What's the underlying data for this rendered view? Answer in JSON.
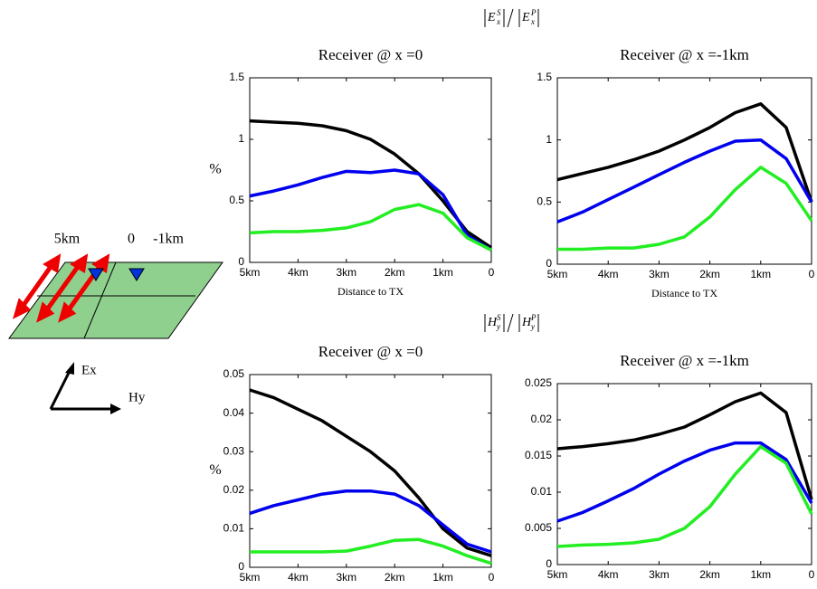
{
  "chart_data": [
    {
      "type": "line",
      "title": "Receiver @ x =0",
      "ylabel": "%",
      "xlabel": "Distance to TX",
      "x": [
        5,
        4.5,
        4,
        3.5,
        3,
        2.5,
        2,
        1.5,
        1,
        0.5,
        0
      ],
      "xlim": [
        5,
        0
      ],
      "xticks": [
        {
          "value": 5,
          "label": "5km"
        },
        {
          "value": 4,
          "label": "4km"
        },
        {
          "value": 3,
          "label": "3km"
        },
        {
          "value": 2,
          "label": "2km"
        },
        {
          "value": 1,
          "label": "1km"
        },
        0
      ],
      "ylim": [
        0,
        1.5
      ],
      "yticks": [
        0,
        0.5,
        1,
        1.5
      ],
      "series": [
        {
          "color": "#000000",
          "values": [
            1.15,
            1.14,
            1.13,
            1.11,
            1.07,
            1.0,
            0.88,
            0.72,
            0.5,
            0.25,
            0.12
          ]
        },
        {
          "color": "#0000ee",
          "values": [
            0.54,
            0.58,
            0.63,
            0.69,
            0.74,
            0.73,
            0.75,
            0.72,
            0.55,
            0.22,
            0.1
          ]
        },
        {
          "color": "#22ee22",
          "values": [
            0.24,
            0.25,
            0.25,
            0.26,
            0.28,
            0.33,
            0.43,
            0.47,
            0.4,
            0.2,
            0.1
          ]
        }
      ]
    },
    {
      "type": "line",
      "title": "Receiver @ x =-1km",
      "xlabel": "Distance to TX",
      "x": [
        5,
        4.5,
        4,
        3.5,
        3,
        2.5,
        2,
        1.5,
        1,
        0.5,
        0
      ],
      "xlim": [
        5,
        0
      ],
      "xticks": [
        {
          "value": 5,
          "label": "5km"
        },
        {
          "value": 4,
          "label": "4km"
        },
        {
          "value": 3,
          "label": "3km"
        },
        {
          "value": 2,
          "label": "2km"
        },
        {
          "value": 1,
          "label": "1km"
        },
        0
      ],
      "ylim": [
        0,
        1.5
      ],
      "yticks": [
        0,
        0.5,
        1,
        1.5
      ],
      "series": [
        {
          "color": "#000000",
          "values": [
            0.68,
            0.73,
            0.78,
            0.84,
            0.91,
            1.0,
            1.1,
            1.22,
            1.29,
            1.1,
            0.5
          ]
        },
        {
          "color": "#0000ee",
          "values": [
            0.34,
            0.42,
            0.52,
            0.62,
            0.72,
            0.82,
            0.91,
            0.99,
            1.0,
            0.85,
            0.5
          ]
        },
        {
          "color": "#22ee22",
          "values": [
            0.12,
            0.12,
            0.13,
            0.13,
            0.16,
            0.22,
            0.38,
            0.6,
            0.78,
            0.65,
            0.35
          ]
        }
      ]
    },
    {
      "type": "line",
      "title": "Receiver @ x =0",
      "ylabel": "%",
      "x": [
        5,
        4.5,
        4,
        3.5,
        3,
        2.5,
        2,
        1.5,
        1,
        0.5,
        0
      ],
      "xlim": [
        5,
        0
      ],
      "xticks": [
        {
          "value": 5,
          "label": "5km"
        },
        {
          "value": 4,
          "label": "4km"
        },
        {
          "value": 3,
          "label": "3km"
        },
        {
          "value": 2,
          "label": "2km"
        },
        {
          "value": 1,
          "label": "1km"
        },
        0
      ],
      "ylim": [
        0,
        0.05
      ],
      "yticks": [
        0,
        0.01,
        0.02,
        0.03,
        0.04,
        0.05
      ],
      "series": [
        {
          "color": "#000000",
          "values": [
            0.046,
            0.044,
            0.041,
            0.038,
            0.034,
            0.03,
            0.025,
            0.018,
            0.01,
            0.005,
            0.003
          ]
        },
        {
          "color": "#0000ee",
          "values": [
            0.014,
            0.016,
            0.0175,
            0.019,
            0.0198,
            0.0198,
            0.019,
            0.016,
            0.011,
            0.006,
            0.004
          ]
        },
        {
          "color": "#22ee22",
          "values": [
            0.004,
            0.004,
            0.004,
            0.004,
            0.0042,
            0.0055,
            0.007,
            0.0072,
            0.0055,
            0.003,
            0.001
          ]
        }
      ]
    },
    {
      "type": "line",
      "title": "Receiver @ x =-1km",
      "x": [
        5,
        4.5,
        4,
        3.5,
        3,
        2.5,
        2,
        1.5,
        1,
        0.5,
        0
      ],
      "xlim": [
        5,
        0
      ],
      "xticks": [
        {
          "value": 5,
          "label": "5km"
        },
        {
          "value": 4,
          "label": "4km"
        },
        {
          "value": 3,
          "label": "3km"
        },
        {
          "value": 2,
          "label": "2km"
        },
        {
          "value": 1,
          "label": "1km"
        },
        0
      ],
      "ylim": [
        0,
        0.025
      ],
      "yticks": [
        0,
        0.005,
        0.01,
        0.015,
        0.02,
        0.025
      ],
      "series": [
        {
          "color": "#000000",
          "values": [
            0.016,
            0.0163,
            0.0167,
            0.0172,
            0.018,
            0.019,
            0.0207,
            0.0225,
            0.0237,
            0.021,
            0.009
          ]
        },
        {
          "color": "#0000ee",
          "values": [
            0.006,
            0.0072,
            0.0088,
            0.0105,
            0.0125,
            0.0143,
            0.0158,
            0.0168,
            0.0168,
            0.0145,
            0.0085
          ]
        },
        {
          "color": "#22ee22",
          "values": [
            0.0025,
            0.0027,
            0.0028,
            0.003,
            0.0035,
            0.005,
            0.008,
            0.0125,
            0.0163,
            0.014,
            0.007
          ]
        }
      ]
    }
  ],
  "formulas": [
    {
      "base": "E",
      "sub": "x",
      "sup": [
        "S",
        "P"
      ]
    },
    {
      "base": "H",
      "sub": "y",
      "sup": [
        "S",
        "P"
      ]
    }
  ],
  "diagram": {
    "labels": [
      "5km",
      "0",
      "-1km",
      "Ex",
      "Hy"
    ]
  }
}
